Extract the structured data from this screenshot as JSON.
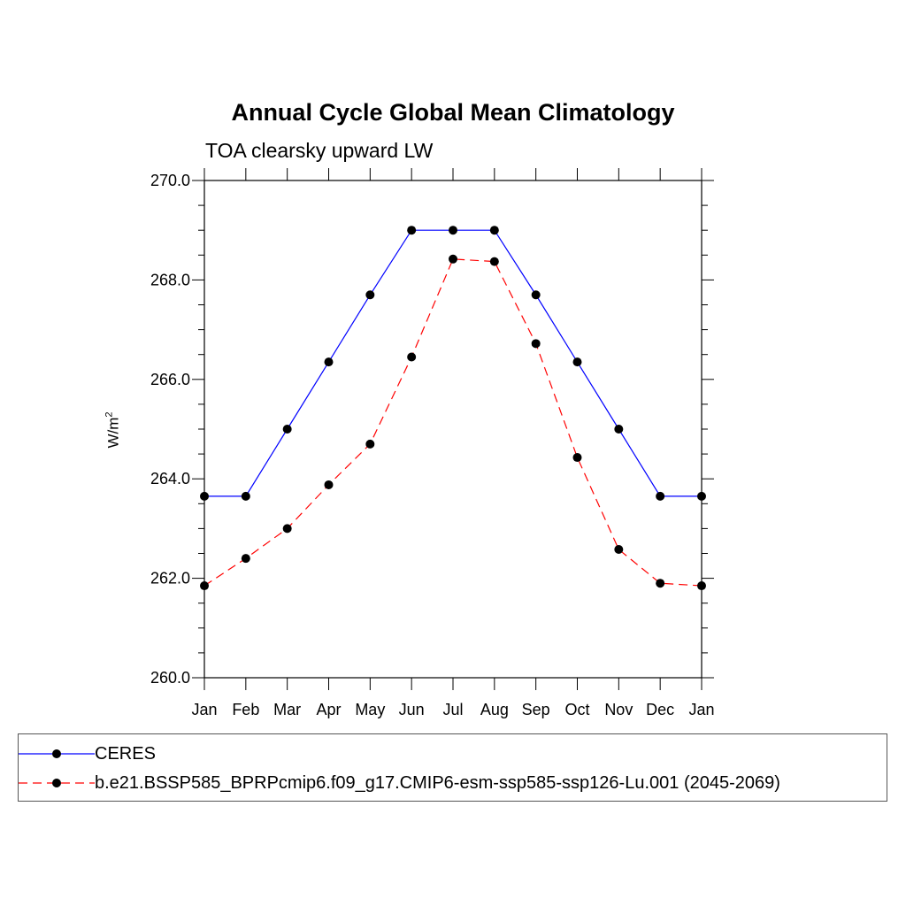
{
  "chart_data": {
    "type": "line",
    "title": "Annual Cycle Global Mean Climatology",
    "subtitle": "TOA clearsky upward LW",
    "ylabel_base": "W/m",
    "ylabel_sup": "2",
    "ylim": [
      260.0,
      270.0
    ],
    "yticks": [
      "260.0",
      "262.0",
      "264.0",
      "266.0",
      "268.0",
      "270.0"
    ],
    "categories": [
      "Jan",
      "Feb",
      "Mar",
      "Apr",
      "May",
      "Jun",
      "Jul",
      "Aug",
      "Sep",
      "Oct",
      "Nov",
      "Dec",
      "Jan"
    ],
    "grid": false,
    "legend_position": "bottom",
    "series": [
      {
        "name": "CERES",
        "color": "#0000ff",
        "dash": "solid",
        "marker": "circle",
        "values": [
          263.65,
          263.65,
          265.0,
          266.35,
          267.7,
          269.0,
          269.0,
          269.0,
          267.7,
          266.35,
          265.0,
          263.65,
          263.65
        ]
      },
      {
        "name": "b.e21.BSSP585_BPRPcmip6.f09_g17.CMIP6-esm-ssp585-ssp126-Lu.001 (2045-2069)",
        "color": "#ff0000",
        "dash": "dashed",
        "marker": "circle",
        "values": [
          261.85,
          262.4,
          263.0,
          263.88,
          264.7,
          266.45,
          268.42,
          268.37,
          266.72,
          264.43,
          262.58,
          261.9,
          261.85
        ]
      }
    ]
  }
}
